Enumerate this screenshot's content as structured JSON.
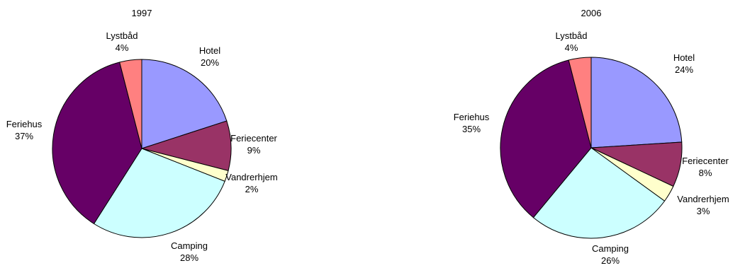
{
  "chart_data": [
    {
      "type": "pie",
      "title": "1997",
      "categories": [
        "Hotel",
        "Feriecenter",
        "Vandrerhjem",
        "Camping",
        "Feriehus",
        "Lystbåd"
      ],
      "values": [
        20,
        9,
        2,
        28,
        37,
        4
      ],
      "value_labels": [
        "20%",
        "9%",
        "2%",
        "28%",
        "37%",
        "4%"
      ],
      "colors": [
        "#9999FF",
        "#993366",
        "#FFFFCC",
        "#CCFFFF",
        "#660066",
        "#FF8080"
      ],
      "start": "12 o'clock",
      "direction": "clockwise",
      "legend": "none"
    },
    {
      "type": "pie",
      "title": "2006",
      "categories": [
        "Hotel",
        "Feriecenter",
        "Vandrerhjem",
        "Camping",
        "Feriehus",
        "Lystbåd"
      ],
      "values": [
        24,
        8,
        3,
        26,
        35,
        4
      ],
      "value_labels": [
        "24%",
        "8%",
        "3%",
        "26%",
        "35%",
        "4%"
      ],
      "colors": [
        "#9999FF",
        "#993366",
        "#FFFFCC",
        "#CCFFFF",
        "#660066",
        "#FF8080"
      ],
      "start": "12 o'clock",
      "direction": "clockwise",
      "legend": "none"
    }
  ]
}
